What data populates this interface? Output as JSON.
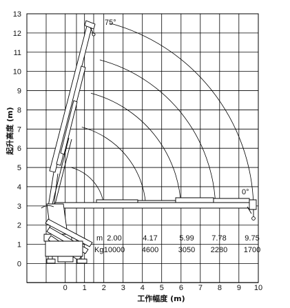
{
  "chart_data": {
    "type": "load-chart",
    "xlabel": "工作幅度 (m)",
    "ylabel": "起升高度 (m)",
    "xlim": [
      -1,
      10
    ],
    "ylim": [
      -1,
      13
    ],
    "x_ticks": [
      0,
      1,
      2,
      3,
      4,
      5,
      6,
      7,
      8,
      9,
      10
    ],
    "y_ticks": [
      0,
      1,
      2,
      3,
      4,
      5,
      6,
      7,
      8,
      9,
      10,
      11,
      12,
      13
    ],
    "grid": true,
    "boom_angle_max": "75°",
    "boom_angle_min": "0°",
    "boom_pivot": {
      "x": -0.3,
      "y": 2.75
    },
    "reach_arcs": [
      {
        "x": 2.0,
        "y": 3.05
      },
      {
        "x": 4.17,
        "y": 3.05
      },
      {
        "x": 5.99,
        "y": 3.05
      },
      {
        "x": 7.78,
        "y": 3.05
      },
      {
        "x": 9.75,
        "y": 3.05
      }
    ],
    "load_table": {
      "radius_label": "m",
      "load_label": "Kg",
      "radius": [
        "2.00",
        "4.17",
        "5.99",
        "7.78",
        "9.75"
      ],
      "load": [
        "10000",
        "4600",
        "3050",
        "2280",
        "1700"
      ]
    }
  }
}
